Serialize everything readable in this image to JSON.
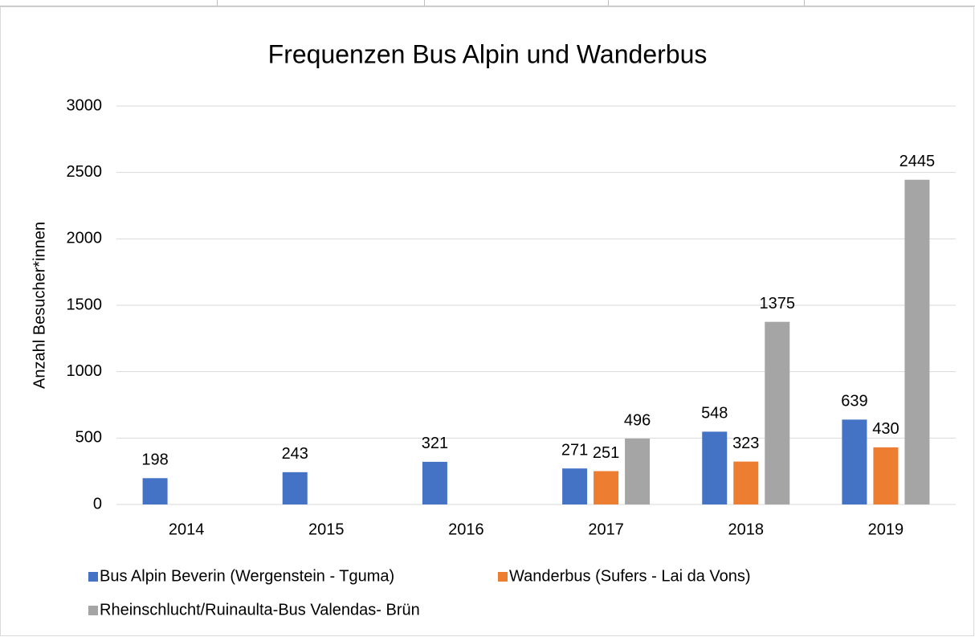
{
  "chart_data": {
    "type": "bar",
    "title": "Frequenzen Bus Alpin und Wanderbus",
    "ylabel": "Anzahl Besucher*innen",
    "categories": [
      "2014",
      "2015",
      "2016",
      "2017",
      "2018",
      "2019"
    ],
    "series": [
      {
        "name": "Bus Alpin Beverin (Wergenstein - Tguma)",
        "color": "#4472c4",
        "values": [
          198,
          243,
          321,
          271,
          548,
          639
        ]
      },
      {
        "name": "Wanderbus (Sufers - Lai da Vons)",
        "color": "#ed7d31",
        "values": [
          null,
          null,
          null,
          251,
          323,
          430
        ]
      },
      {
        "name": "Rheinschlucht/Ruinaulta-Bus Valendas- Brün",
        "color": "#a5a5a5",
        "values": [
          null,
          null,
          null,
          496,
          1375,
          2445
        ]
      }
    ],
    "ylim": [
      0,
      3000
    ],
    "yticks": [
      0,
      500,
      1000,
      1500,
      2000,
      2500,
      3000
    ],
    "grid": true
  }
}
